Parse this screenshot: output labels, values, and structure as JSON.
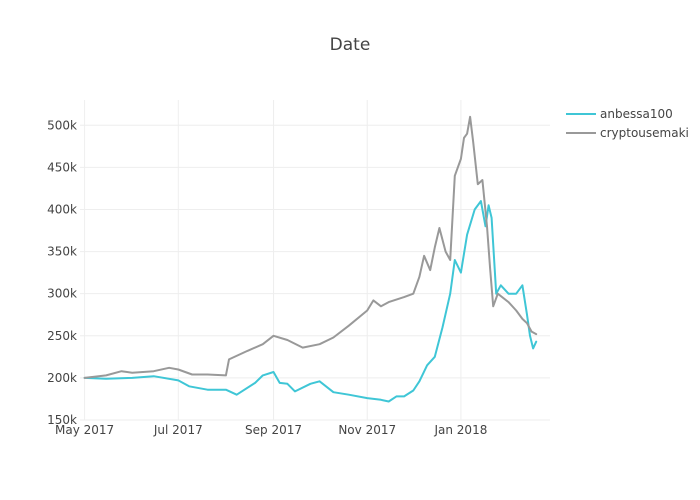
{
  "chart_data": {
    "type": "line",
    "title": "Date",
    "xlabel": "",
    "ylabel": "",
    "xlim": [
      "2017-04-28",
      "2018-02-28"
    ],
    "ylim": [
      150000,
      530000
    ],
    "x_ticks": [
      {
        "date": "2017-05-01",
        "label": "May 2017"
      },
      {
        "date": "2017-07-01",
        "label": "Jul 2017"
      },
      {
        "date": "2017-09-01",
        "label": "Sep 2017"
      },
      {
        "date": "2017-11-01",
        "label": "Nov 2017"
      },
      {
        "date": "2018-01-01",
        "label": "Jan 2018"
      }
    ],
    "y_ticks": [
      {
        "value": 150000,
        "label": "150k"
      },
      {
        "value": 200000,
        "label": "200k"
      },
      {
        "value": 250000,
        "label": "250k"
      },
      {
        "value": 300000,
        "label": "300k"
      },
      {
        "value": 350000,
        "label": "350k"
      },
      {
        "value": 400000,
        "label": "400k"
      },
      {
        "value": 450000,
        "label": "450k"
      },
      {
        "value": 500000,
        "label": "500k"
      }
    ],
    "grid": true,
    "legend_position": "top-right",
    "series": [
      {
        "name": "anbessa100",
        "color": "#3fc6d6",
        "points": [
          [
            "2017-05-01",
            200000
          ],
          [
            "2017-05-15",
            199000
          ],
          [
            "2017-06-01",
            200000
          ],
          [
            "2017-06-15",
            202000
          ],
          [
            "2017-07-01",
            197000
          ],
          [
            "2017-07-08",
            190000
          ],
          [
            "2017-07-20",
            186000
          ],
          [
            "2017-08-01",
            186000
          ],
          [
            "2017-08-08",
            180000
          ],
          [
            "2017-08-20",
            194000
          ],
          [
            "2017-08-25",
            203000
          ],
          [
            "2017-09-01",
            207000
          ],
          [
            "2017-09-05",
            194000
          ],
          [
            "2017-09-10",
            193000
          ],
          [
            "2017-09-15",
            184000
          ],
          [
            "2017-09-25",
            193000
          ],
          [
            "2017-10-01",
            196000
          ],
          [
            "2017-10-10",
            183000
          ],
          [
            "2017-10-20",
            180000
          ],
          [
            "2017-11-01",
            176000
          ],
          [
            "2017-11-10",
            174000
          ],
          [
            "2017-11-15",
            172000
          ],
          [
            "2017-11-20",
            178000
          ],
          [
            "2017-11-25",
            178000
          ],
          [
            "2017-12-01",
            185000
          ],
          [
            "2017-12-05",
            196000
          ],
          [
            "2017-12-10",
            215000
          ],
          [
            "2017-12-15",
            225000
          ],
          [
            "2017-12-20",
            260000
          ],
          [
            "2017-12-25",
            300000
          ],
          [
            "2017-12-28",
            340000
          ],
          [
            "2018-01-01",
            325000
          ],
          [
            "2018-01-05",
            370000
          ],
          [
            "2018-01-10",
            400000
          ],
          [
            "2018-01-14",
            410000
          ],
          [
            "2018-01-17",
            380000
          ],
          [
            "2018-01-19",
            405000
          ],
          [
            "2018-01-21",
            390000
          ],
          [
            "2018-01-24",
            300000
          ],
          [
            "2018-01-27",
            310000
          ],
          [
            "2018-02-01",
            300000
          ],
          [
            "2018-02-06",
            300000
          ],
          [
            "2018-02-10",
            310000
          ],
          [
            "2018-02-13",
            275000
          ],
          [
            "2018-02-15",
            250000
          ],
          [
            "2018-02-17",
            235000
          ],
          [
            "2018-02-19",
            243000
          ]
        ]
      },
      {
        "name": "cryptousemaki",
        "color": "#999999",
        "points": [
          [
            "2017-05-01",
            200000
          ],
          [
            "2017-05-15",
            203000
          ],
          [
            "2017-05-25",
            208000
          ],
          [
            "2017-06-01",
            206000
          ],
          [
            "2017-06-15",
            208000
          ],
          [
            "2017-06-25",
            212000
          ],
          [
            "2017-07-01",
            210000
          ],
          [
            "2017-07-10",
            204000
          ],
          [
            "2017-07-20",
            204000
          ],
          [
            "2017-08-01",
            203000
          ],
          [
            "2017-08-03",
            222000
          ],
          [
            "2017-08-15",
            232000
          ],
          [
            "2017-08-25",
            240000
          ],
          [
            "2017-09-01",
            250000
          ],
          [
            "2017-09-10",
            245000
          ],
          [
            "2017-09-20",
            236000
          ],
          [
            "2017-10-01",
            240000
          ],
          [
            "2017-10-10",
            248000
          ],
          [
            "2017-10-20",
            262000
          ],
          [
            "2017-11-01",
            280000
          ],
          [
            "2017-11-05",
            292000
          ],
          [
            "2017-11-10",
            285000
          ],
          [
            "2017-11-15",
            290000
          ],
          [
            "2017-11-25",
            296000
          ],
          [
            "2017-12-01",
            300000
          ],
          [
            "2017-12-05",
            320000
          ],
          [
            "2017-12-08",
            345000
          ],
          [
            "2017-12-12",
            328000
          ],
          [
            "2017-12-15",
            355000
          ],
          [
            "2017-12-18",
            378000
          ],
          [
            "2017-12-22",
            350000
          ],
          [
            "2017-12-25",
            340000
          ],
          [
            "2017-12-28",
            440000
          ],
          [
            "2018-01-01",
            460000
          ],
          [
            "2018-01-03",
            485000
          ],
          [
            "2018-01-05",
            490000
          ],
          [
            "2018-01-07",
            510000
          ],
          [
            "2018-01-09",
            480000
          ],
          [
            "2018-01-12",
            430000
          ],
          [
            "2018-01-15",
            435000
          ],
          [
            "2018-01-18",
            380000
          ],
          [
            "2018-01-20",
            330000
          ],
          [
            "2018-01-22",
            285000
          ],
          [
            "2018-01-25",
            300000
          ],
          [
            "2018-02-01",
            290000
          ],
          [
            "2018-02-06",
            280000
          ],
          [
            "2018-02-10",
            270000
          ],
          [
            "2018-02-13",
            265000
          ],
          [
            "2018-02-16",
            255000
          ],
          [
            "2018-02-19",
            252000
          ]
        ]
      }
    ]
  }
}
